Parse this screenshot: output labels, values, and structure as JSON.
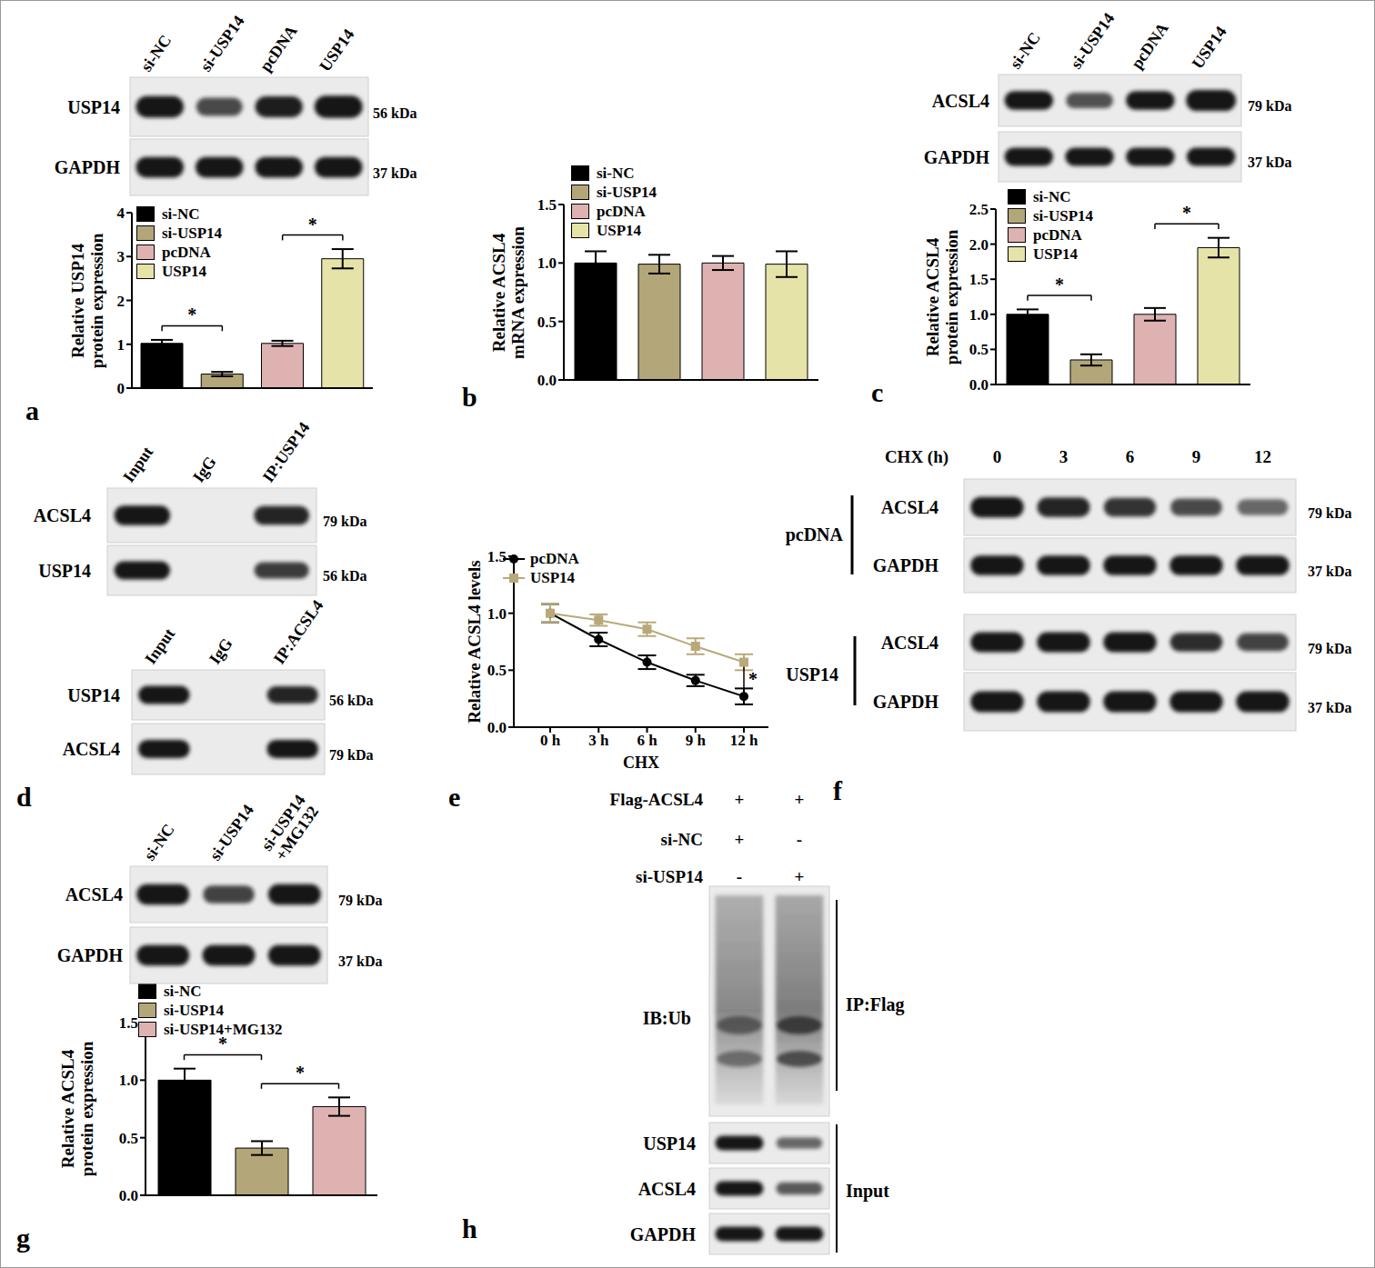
{
  "chart_data": [
    {
      "panel": "a",
      "type": "bar",
      "categories": [
        "si-NC",
        "si-USP14",
        "pcDNA",
        "USP14"
      ],
      "values": [
        1.02,
        0.32,
        1.02,
        2.95
      ],
      "errors": [
        0.08,
        0.05,
        0.06,
        0.22
      ],
      "colors": [
        "#000000",
        "#b3a679",
        "#dfb2b2",
        "#e5e3a8"
      ],
      "y_label": "Relative USP14\nprotein expression",
      "ylim": [
        0,
        4
      ],
      "yticks": [
        0,
        1,
        2,
        3,
        4
      ],
      "legend": "top-left",
      "tick_labels": "y",
      "comparisons": [
        {
          "from": "si-NC",
          "to": "si-USP14",
          "label": "*"
        },
        {
          "from": "pcDNA",
          "to": "USP14",
          "label": "*"
        }
      ]
    },
    {
      "panel": "b",
      "type": "bar",
      "categories": [
        "si-NC",
        "si-USP14",
        "pcDNA",
        "USP14"
      ],
      "values": [
        1.0,
        0.99,
        1.0,
        0.99
      ],
      "errors": [
        0.1,
        0.08,
        0.06,
        0.11
      ],
      "colors": [
        "#000000",
        "#b3a679",
        "#dfb2b2",
        "#e5e3a8"
      ],
      "y_label": "Relative ACSL4\nmRNA expression",
      "ylim": [
        0,
        1.5
      ],
      "yticks": [
        {
          "value": 0,
          "label": "0.0"
        },
        0.5,
        {
          "value": 1,
          "label": "1.0"
        },
        1.5
      ],
      "legend": "top-left",
      "tick_labels": "y"
    },
    {
      "panel": "c",
      "type": "bar",
      "categories": [
        "si-NC",
        "si-USP14",
        "pcDNA",
        "USP14"
      ],
      "values": [
        1.0,
        0.35,
        1.0,
        1.95
      ],
      "errors": [
        0.07,
        0.08,
        0.09,
        0.14
      ],
      "colors": [
        "#000000",
        "#b3a679",
        "#dfb2b2",
        "#e5e3a8"
      ],
      "y_label": "Relative ACSL4\nprotein expression",
      "ylim": [
        0,
        2.5
      ],
      "yticks": [
        {
          "value": 0,
          "label": "0.0"
        },
        0.5,
        {
          "value": 1,
          "label": "1.0"
        },
        1.5,
        {
          "value": 2,
          "label": "2.0"
        },
        2.5
      ],
      "legend": "top-left",
      "tick_labels": "y",
      "comparisons": [
        {
          "from": "si-NC",
          "to": "si-USP14",
          "label": "*"
        },
        {
          "from": "pcDNA",
          "to": "USP14",
          "label": "*"
        }
      ]
    },
    {
      "panel": "e",
      "type": "line",
      "categories": [
        "0 h",
        "3 h",
        "6 h",
        "9 h",
        "12 h"
      ],
      "x_label": "CHX",
      "y_label": "Relative ACSL4 levels",
      "ylim": [
        0,
        1.5
      ],
      "yticks": [
        {
          "value": 0,
          "label": "0.0"
        },
        0.5,
        {
          "value": 1,
          "label": "1.0"
        },
        1.5
      ],
      "legend": "top-left",
      "series": [
        {
          "name": "pcDNA",
          "color": "#000000",
          "marker": "circle",
          "values": [
            1.0,
            0.77,
            0.57,
            0.41,
            0.27
          ],
          "errors": [
            0.08,
            0.06,
            0.06,
            0.05,
            0.07
          ]
        },
        {
          "name": "USP14",
          "color": "#b9a97a",
          "marker": "square",
          "values": [
            1.0,
            0.94,
            0.86,
            0.71,
            0.57
          ],
          "errors": [
            0.08,
            0.05,
            0.06,
            0.07,
            0.07
          ]
        }
      ],
      "comparisons": [
        {
          "at": "12 h",
          "label": "*"
        }
      ]
    },
    {
      "panel": "g",
      "type": "bar",
      "categories": [
        "si-NC",
        "si-USP14",
        "si-USP14+MG132"
      ],
      "values": [
        1.0,
        0.41,
        0.77
      ],
      "errors": [
        0.1,
        0.06,
        0.08
      ],
      "colors": [
        "#000000",
        "#b3a679",
        "#dfb2b2"
      ],
      "y_label": "Relative ACSL4\nprotein expression",
      "ylim": [
        0,
        1.5
      ],
      "yticks": [
        {
          "value": 0,
          "label": "0.0"
        },
        0.5,
        {
          "value": 1,
          "label": "1.0"
        },
        1.5
      ],
      "legend": "top-left",
      "tick_labels": "y",
      "comparisons": [
        {
          "from": "si-NC",
          "to": "si-USP14",
          "label": "*"
        },
        {
          "from": "si-USP14",
          "to": "si-USP14+MG132",
          "label": "*"
        }
      ]
    }
  ],
  "blots": {
    "a": {
      "lanes": [
        "si-NC",
        "si-USP14",
        "pcDNA",
        "USP14"
      ],
      "rows": [
        {
          "label": "USP14",
          "kda": "56 kDa",
          "bands": [
            1,
            0.65,
            0.95,
            1.1
          ]
        },
        {
          "label": "GAPDH",
          "kda": "37 kDa",
          "bands": [
            1,
            1,
            1,
            1
          ]
        }
      ]
    },
    "c": {
      "lanes": [
        "si-NC",
        "si-USP14",
        "pcDNA",
        "USP14"
      ],
      "rows": [
        {
          "label": "ACSL4",
          "kda": "79 kDa",
          "bands": [
            1,
            0.6,
            1,
            1.3
          ]
        },
        {
          "label": "GAPDH",
          "kda": "37 kDa",
          "bands": [
            1,
            1,
            1,
            1
          ]
        }
      ]
    },
    "d": [
      {
        "lanes": [
          "Input",
          "IgG",
          "IP:USP14"
        ],
        "rows": [
          {
            "label": "ACSL4",
            "kda": "79 kDa",
            "bands": [
              1,
              0,
              0.9
            ]
          },
          {
            "label": "USP14",
            "kda": "56 kDa",
            "bands": [
              1,
              0,
              0.75
            ]
          }
        ]
      },
      {
        "lanes": [
          "Input",
          "IgG",
          "IP:ACSL4"
        ],
        "rows": [
          {
            "label": "USP14",
            "kda": "56 kDa",
            "bands": [
              1,
              0,
              0.9
            ]
          },
          {
            "label": "ACSL4",
            "kda": "79 kDa",
            "bands": [
              1,
              0,
              1
            ]
          }
        ]
      }
    ],
    "f": {
      "header": "CHX (h)",
      "lanes": [
        "0",
        "3",
        "6",
        "9",
        "12"
      ],
      "groups": [
        {
          "label": "pcDNA",
          "rows": [
            {
              "label": "ACSL4",
              "kda": "79 kDa",
              "bands": [
                1,
                0.9,
                0.8,
                0.65,
                0.45
              ]
            },
            {
              "label": "GAPDH",
              "kda": "37 kDa",
              "bands": [
                1,
                1,
                1,
                1,
                1
              ]
            }
          ]
        },
        {
          "label": "USP14",
          "rows": [
            {
              "label": "ACSL4",
              "kda": "79 kDa",
              "bands": [
                1,
                1,
                1,
                0.85,
                0.7
              ]
            },
            {
              "label": "GAPDH",
              "kda": "37 kDa",
              "bands": [
                1,
                1,
                1,
                1,
                1
              ]
            }
          ]
        }
      ]
    },
    "g": {
      "lanes": [
        "si-NC",
        "si-USP14",
        "si-USP14\n+MG132"
      ],
      "rows": [
        {
          "label": "ACSL4",
          "kda": "79 kDa",
          "bands": [
            1,
            0.7,
            1
          ]
        },
        {
          "label": "GAPDH",
          "kda": "37 kDa",
          "bands": [
            1,
            1,
            1
          ]
        }
      ]
    },
    "h": {
      "conditions": [
        {
          "label": "Flag-ACSL4",
          "marks": [
            "+",
            "+"
          ]
        },
        {
          "label": "si-NC",
          "marks": [
            "+",
            "-"
          ]
        },
        {
          "label": "si-USP14",
          "marks": [
            "-",
            "+"
          ]
        }
      ],
      "ip": {
        "label": "IB:Ub",
        "group": "IP:Flag",
        "bands": [
          1,
          1.4
        ]
      },
      "input": {
        "group": "Input",
        "rows": [
          {
            "label": "USP14",
            "bands": [
              1,
              0.45
            ]
          },
          {
            "label": "ACSL4",
            "bands": [
              1,
              0.55
            ]
          },
          {
            "label": "GAPDH",
            "bands": [
              1,
              1
            ]
          }
        ]
      }
    }
  }
}
